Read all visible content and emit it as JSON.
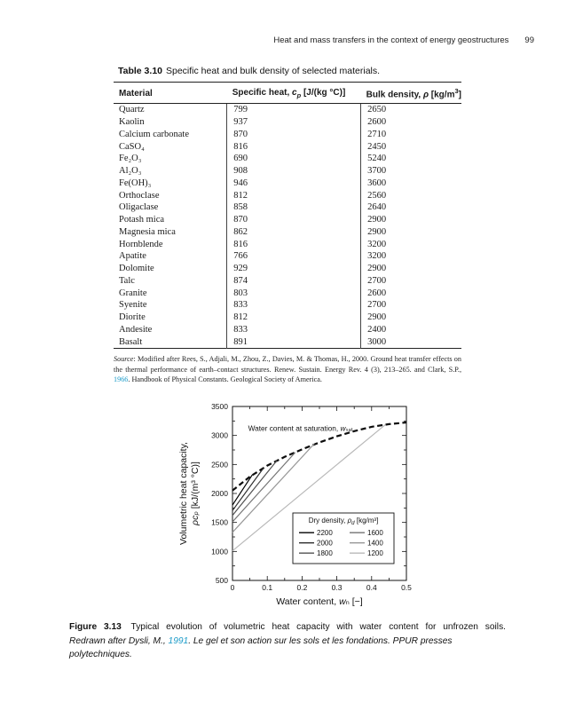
{
  "page": {
    "running_head": "Heat and mass transfers in the context of energy geostructures",
    "page_number": "99"
  },
  "table": {
    "label": "Table 3.10",
    "title": "Specific heat and bulk density of selected materials.",
    "columns": {
      "material": "Material",
      "specific_heat_prefix": "Specific heat, ",
      "specific_heat_symbol": "c",
      "specific_heat_sub": "p",
      "specific_heat_unit": " [J/(kg °C)]",
      "bulk_density_prefix": "Bulk density, ",
      "bulk_density_symbol": "ρ",
      "bulk_density_unit": " [kg/m",
      "bulk_density_sup": "3",
      "bulk_density_unit_close": "]"
    },
    "rows": [
      [
        "Quartz",
        "799",
        "2650"
      ],
      [
        "Kaolin",
        "937",
        "2600"
      ],
      [
        "Calcium carbonate",
        "870",
        "2710"
      ],
      [
        "CaSO₄",
        "816",
        "2450"
      ],
      [
        "Fe₂O₃",
        "690",
        "5240"
      ],
      [
        "Al₂O₃",
        "908",
        "3700"
      ],
      [
        "Fe(OH)₃",
        "946",
        "3600"
      ],
      [
        "Orthoclase",
        "812",
        "2560"
      ],
      [
        "Oligaclase",
        "858",
        "2640"
      ],
      [
        "Potash mica",
        "870",
        "2900"
      ],
      [
        "Magnesia mica",
        "862",
        "2900"
      ],
      [
        "Hornblende",
        "816",
        "3200"
      ],
      [
        "Apatite",
        "766",
        "3200"
      ],
      [
        "Dolomite",
        "929",
        "2900"
      ],
      [
        "Talc",
        "874",
        "2700"
      ],
      [
        "Granite",
        "803",
        "2600"
      ],
      [
        "Syenite",
        "833",
        "2700"
      ],
      [
        "Diorite",
        "812",
        "2900"
      ],
      [
        "Andesite",
        "833",
        "2400"
      ],
      [
        "Basalt",
        "891",
        "3000"
      ]
    ],
    "source_label": "Source",
    "source_text_1": ": Modified after Rees, S., Adjali, M., Zhou, Z., Davies, M. & Thomas, H., 2000. Ground heat transfer effects on the thermal performance of earth–contact structures. Renew. Sustain. Energy Rev. 4 (3), 213–265. and Clark, S.P., ",
    "source_year_link": "1966",
    "source_text_2": ". Handbook of Physical Constants. Geological Society of America."
  },
  "figure": {
    "label": "Figure 3.13",
    "caption": " Typical evolution of volumetric heat capacity with water content for unfrozen soils.",
    "credit_pre": "Redrawn after Dysli, M., ",
    "credit_year_link": "1991",
    "credit_post": ". Le gel et son action sur les sols et les fondations. PPUR presses polytechniques."
  },
  "chart_data": {
    "type": "line",
    "title": "",
    "xlabel_parts": [
      "Water content, ",
      "w",
      "ₙ [−]"
    ],
    "ylabel_line1": "Volumetric heat capacity,",
    "ylabel_line2_parts": [
      "ρcₚ",
      " [kJ/(m³ °C)]"
    ],
    "xlim": [
      0,
      0.5
    ],
    "ylim": [
      500,
      3500
    ],
    "xticks": [
      0,
      0.1,
      0.2,
      0.3,
      0.4,
      0.5
    ],
    "xtick_labels": [
      "0",
      "0.1",
      "0.2",
      "0.3",
      "0.4",
      "0.5"
    ],
    "x_minor_ticks": [
      0.05,
      0.15,
      0.25,
      0.35,
      0.45
    ],
    "yticks": [
      500,
      1000,
      1500,
      2000,
      2500,
      3000,
      3500
    ],
    "ytick_labels": [
      "500",
      "1000",
      "1500",
      "2000",
      "2500",
      "3000",
      "3500"
    ],
    "y_minor_ticks": [
      750,
      1250,
      1750,
      2250,
      2750,
      3250
    ],
    "grid": false,
    "annotation_parts": [
      "Water content at saturation, ",
      "w",
      "ₛₐₜ"
    ],
    "annotation_xy": [
      0.045,
      3080
    ],
    "saturation_curve": {
      "name": "saturation-limit",
      "style": "dashed",
      "color": "#0d0d0d",
      "x": [
        0,
        0.05,
        0.1,
        0.15,
        0.2,
        0.25,
        0.3,
        0.35,
        0.4,
        0.45,
        0.5
      ],
      "y": [
        2050,
        2290,
        2480,
        2630,
        2760,
        2880,
        2985,
        3075,
        3150,
        3195,
        3225
      ]
    },
    "series": [
      {
        "name": "2200",
        "color": "#000000",
        "x": [
          0,
          0.057
        ],
        "y": [
          1800,
          2320
        ]
      },
      {
        "name": "2000",
        "color": "#2e2e2e",
        "x": [
          0,
          0.09
        ],
        "y": [
          1705,
          2445
        ]
      },
      {
        "name": "1800",
        "color": "#505050",
        "x": [
          0,
          0.128
        ],
        "y": [
          1620,
          2570
        ]
      },
      {
        "name": "1600",
        "color": "#737373",
        "x": [
          0,
          0.18
        ],
        "y": [
          1510,
          2705
        ]
      },
      {
        "name": "1400",
        "color": "#979797",
        "x": [
          0,
          0.235
        ],
        "y": [
          1330,
          2855
        ]
      },
      {
        "name": "1200",
        "color": "#b8b8b8",
        "x": [
          0,
          0.44
        ],
        "y": [
          1010,
          3190
        ]
      }
    ],
    "legend_title_parts": [
      "Dry density, ",
      "ρ",
      "d",
      " [kg/m³]"
    ],
    "legend_position": "lower right"
  },
  "colors": {
    "link_teal": "#1b9bc8",
    "text": "#1a1a1a"
  }
}
